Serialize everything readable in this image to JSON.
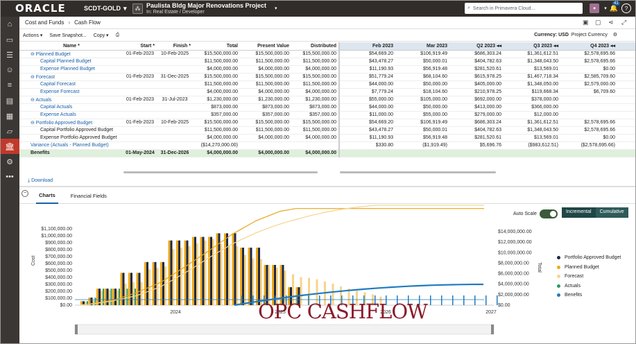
{
  "topbar": {
    "logo": "ORACLE",
    "workspace": "SCDT-GOLD",
    "project_title": "Paulista Bldg Major Renovations Project",
    "project_sub": "In: Real Estate / Developer",
    "search_placeholder": "Search in Primavera Cloud...",
    "notif_count": "41"
  },
  "header": {
    "crumb1": "Cost and Funds",
    "crumb2": "Cash Flow"
  },
  "toolbar": {
    "actions": "Actions ▾",
    "snapshot": "Save Snapshot...",
    "copy": "Copy ▾",
    "currency": "Currency: USD",
    "currency_type": "Project Currency"
  },
  "columns_left": [
    "Name *",
    "Start *",
    "Finish *",
    "Total",
    "Present Value",
    "Distributed"
  ],
  "columns_right": [
    "Feb 2023",
    "Mar 2023",
    "Q2 2023 ◂◂",
    "Q3 2023 ◂◂",
    "Q4 2023 ◂◂",
    ""
  ],
  "rows": [
    {
      "n": "⊖ Planned Budget",
      "lvl": 0,
      "blue": true,
      "s": "01-Feb-2023",
      "f": "10-Feb-2025",
      "t": "$15,500,000.00",
      "p": "$15,500,000.00",
      "d": "$15,500,000.00",
      "r": [
        "$54,669.20",
        "$106,919.49",
        "$686,303.24",
        "$1,361,612.51",
        "$2,578,695.66",
        "$"
      ]
    },
    {
      "n": "Capital Planned Budget",
      "lvl": 1,
      "blue": true,
      "s": "",
      "f": "",
      "t": "$11,500,000.00",
      "p": "$11,500,000.00",
      "d": "$11,500,000.00",
      "r": [
        "$43,478.27",
        "$50,000.01",
        "$404,782.63",
        "$1,348,043.50",
        "$2,578,695.66",
        "$"
      ]
    },
    {
      "n": "Expense Planned Budget",
      "lvl": 1,
      "blue": true,
      "s": "",
      "f": "",
      "t": "$4,000,000.00",
      "p": "$4,000,000.00",
      "d": "$4,000,000.00",
      "r": [
        "$11,190.93",
        "$56,919.48",
        "$281,520.61",
        "$13,569.01",
        "$0.00",
        "$"
      ]
    },
    {
      "n": "⊖ Forecast",
      "lvl": 0,
      "blue": true,
      "s": "01-Feb-2023",
      "f": "31-Dec-2025",
      "t": "$15,500,000.00",
      "p": "$15,500,000.00",
      "d": "$15,500,000.00",
      "r": [
        "$51,779.24",
        "$68,104.60",
        "$615,978.25",
        "$1,467,718.34",
        "$2,585,709.60",
        "$"
      ]
    },
    {
      "n": "Capital Forecast",
      "lvl": 1,
      "blue": true,
      "s": "",
      "f": "",
      "t": "$11,500,000.00",
      "p": "$11,500,000.00",
      "d": "$11,500,000.00",
      "r": [
        "$44,000.00",
        "$50,000.00",
        "$405,000.00",
        "$1,348,050.00",
        "$2,579,000.00",
        "$"
      ]
    },
    {
      "n": "Expense Forecast",
      "lvl": 1,
      "blue": true,
      "s": "",
      "f": "",
      "t": "$4,000,000.00",
      "p": "$4,000,000.00",
      "d": "$4,000,000.00",
      "r": [
        "$7,779.24",
        "$18,104.60",
        "$210,978.25",
        "$119,668.34",
        "$6,709.60",
        ""
      ]
    },
    {
      "n": "⊖ Actuals",
      "lvl": 0,
      "blue": true,
      "s": "01-Feb-2023",
      "f": "31-Jul-2023",
      "t": "$1,230,000.00",
      "p": "$1,230,000.00",
      "d": "$1,230,000.00",
      "r": [
        "$55,000.00",
        "$105,000.00",
        "$692,000.00",
        "$378,000.00",
        "",
        ""
      ]
    },
    {
      "n": "Capital Actuals",
      "lvl": 1,
      "blue": true,
      "s": "",
      "f": "",
      "t": "$873,000.00",
      "p": "$873,000.00",
      "d": "$873,000.00",
      "r": [
        "$44,000.00",
        "$50,000.00",
        "$413,000.00",
        "$366,000.00",
        "",
        ""
      ]
    },
    {
      "n": "Expense Actuals",
      "lvl": 1,
      "blue": true,
      "s": "",
      "f": "",
      "t": "$357,000.00",
      "p": "$357,000.00",
      "d": "$357,000.00",
      "r": [
        "$11,000.00",
        "$55,000.00",
        "$279,000.00",
        "$12,000.00",
        "",
        ""
      ]
    },
    {
      "n": "⊖ Portfolio Approved Budget",
      "lvl": 0,
      "blue": true,
      "s": "01-Feb-2023",
      "f": "10-Feb-2025",
      "t": "$15,500,000.00",
      "p": "$15,500,000.00",
      "d": "$15,500,000.00",
      "r": [
        "$54,669.20",
        "$106,919.49",
        "$686,303.24",
        "$1,361,612.51",
        "$2,578,695.66",
        "$"
      ]
    },
    {
      "n": "Capital Portfolio Approved Budget",
      "lvl": 1,
      "blue": false,
      "s": "",
      "f": "",
      "t": "$11,500,000.00",
      "p": "$11,500,000.00",
      "d": "$11,500,000.00",
      "r": [
        "$43,478.27",
        "$50,000.01",
        "$404,782.63",
        "$1,348,043.50",
        "$2,578,695.66",
        "$"
      ]
    },
    {
      "n": "Expense Portfolio Approved Budget",
      "lvl": 1,
      "blue": false,
      "s": "",
      "f": "",
      "t": "$4,000,000.00",
      "p": "$4,000,000.00",
      "d": "$4,000,000.00",
      "r": [
        "$11,190.93",
        "$56,919.48",
        "$281,520.61",
        "$13,569.01",
        "$0.00",
        "$"
      ]
    },
    {
      "n": "Variance (Actuals - Planned Budget)",
      "lvl": 0,
      "blue": true,
      "s": "",
      "f": "",
      "t": "($14,270,000.00)",
      "p": "",
      "d": "",
      "r": [
        "$330.80",
        "($1,919.49)",
        "$5,696.76",
        "($983,612.51)",
        "($2,578,695.66)",
        "($1"
      ]
    },
    {
      "n": "Benefits",
      "lvl": 0,
      "blue": false,
      "ben": true,
      "s": "01-May-2024",
      "f": "31-Dec-2026",
      "t": "$4,000,000.00",
      "p": "$4,000,000.00",
      "d": "$4,000,000.00",
      "r": [
        "",
        "",
        "",
        "",
        "",
        ""
      ]
    }
  ],
  "download": "Download",
  "tabs": [
    "Charts",
    "Financial Fields"
  ],
  "chart_controls": {
    "auto_scale": "Auto Scale",
    "incremental": "Incremental",
    "cumulative": "Cumulative"
  },
  "watermark": "OPC CASHFLOW",
  "chart_data": {
    "type": "bar",
    "ylabel": "Cost",
    "y2label": "Total",
    "yticks": [
      "$1,100,000.00",
      "$1,000,000.00",
      "$900,000.00",
      "$800,000.00",
      "$700,000.00",
      "$600,000.00",
      "$500,000.00",
      "$400,000.00",
      "$300,000.00",
      "$200,000.00",
      "$100,000.00",
      "$0.00"
    ],
    "y2ticks": [
      "$14,000,000.00",
      "$12,000,000.00",
      "$10,000,000.00",
      "$8,000,000.00",
      "$6,000,000.00",
      "$4,000,000.00",
      "$2,000,000.00",
      "$0.00"
    ],
    "xticks": [
      "2024",
      "2025",
      "2026",
      "2027"
    ],
    "ylim": [
      0,
      1100000
    ],
    "y2lim": [
      0,
      15000000
    ],
    "series": [
      {
        "name": "Portfolio Approved Budget",
        "color": "#1b2a4a",
        "values": [
          55000,
          105000,
          230000,
          230000,
          230000,
          450000,
          450000,
          450000,
          600000,
          600000,
          600000,
          900000,
          900000,
          900000,
          950000,
          950000,
          950000,
          1000000,
          1000000,
          1000000,
          800000,
          800000,
          800000,
          560000,
          560000,
          560000,
          250000,
          250000
        ]
      },
      {
        "name": "Planned Budget",
        "color": "#f0a818",
        "values": [
          55000,
          105000,
          230000,
          230000,
          230000,
          450000,
          450000,
          450000,
          600000,
          600000,
          600000,
          900000,
          900000,
          900000,
          950000,
          950000,
          950000,
          1000000,
          1000000,
          1000000,
          800000,
          800000,
          800000,
          560000,
          560000,
          560000,
          250000,
          250000
        ]
      },
      {
        "name": "Forecast",
        "color": "#f7d48a",
        "values": [
          52000,
          68000,
          200000,
          210000,
          205000,
          300000,
          320000,
          320000,
          500000,
          520000,
          540000,
          780000,
          800000,
          820000,
          860000,
          900000,
          920000,
          850000,
          830000,
          820000,
          700000,
          650000,
          640000,
          560000,
          520000,
          480000,
          430000,
          390000,
          380000,
          360000,
          330000,
          300000,
          260000,
          230000,
          200000,
          180000,
          150000,
          120000
        ]
      },
      {
        "name": "Actuals",
        "color": "#2a9a6a",
        "values": [
          55000,
          105000,
          230000,
          230000,
          230000,
          230000,
          230000
        ]
      },
      {
        "name": "Benefits",
        "color": "#1f7bc0",
        "values": [
          0,
          0,
          0,
          0,
          0,
          0,
          0,
          0,
          0,
          0,
          0,
          0,
          0,
          0,
          0,
          0,
          0,
          0,
          0,
          0,
          0,
          0,
          0,
          0,
          0,
          0,
          0,
          0,
          0,
          0,
          0,
          0,
          0,
          0,
          0,
          0
        ]
      }
    ]
  }
}
